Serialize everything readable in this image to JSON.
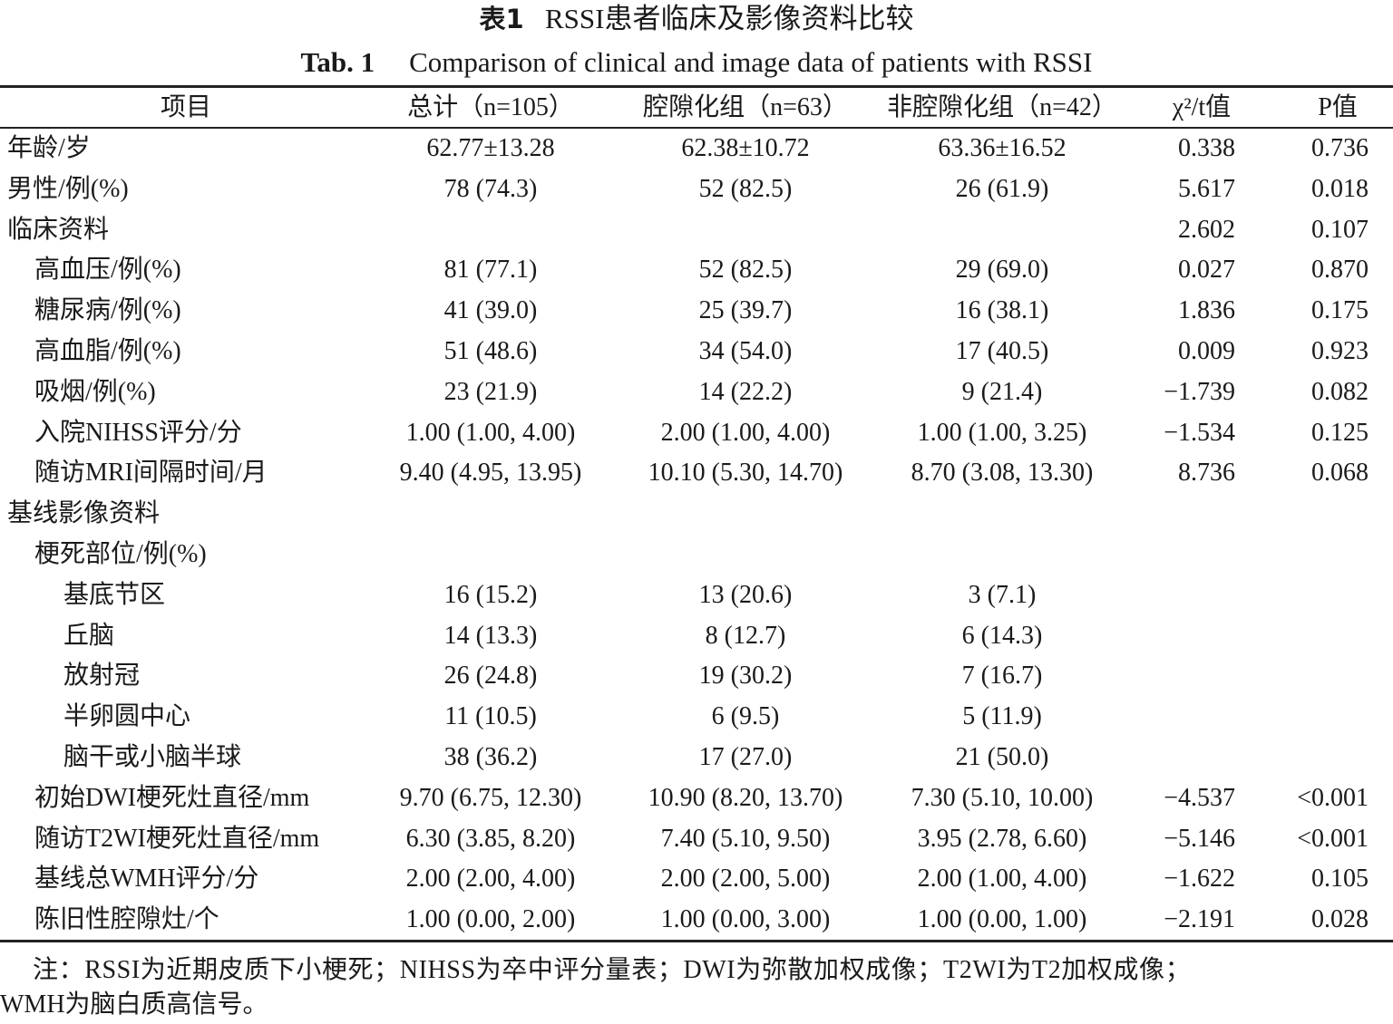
{
  "title": {
    "cn_label": "表1",
    "cn_text": "RSSI患者临床及影像资料比较",
    "en_label": "Tab. 1",
    "en_text": "Comparison of clinical and image data of patients with RSSI"
  },
  "headers": [
    "项目",
    "总计（n=105）",
    "腔隙化组（n=63）",
    "非腔隙化组（n=42）",
    "χ²/t值",
    "P值"
  ],
  "rows": [
    {
      "label": "年龄/岁",
      "indent": 0,
      "values": [
        "62.77±13.28",
        "62.38±10.72",
        "63.36±16.52",
        "0.338",
        "0.736"
      ]
    },
    {
      "label": "男性/例(%)",
      "indent": 0,
      "values": [
        "78 (74.3)",
        "52 (82.5)",
        "26 (61.9)",
        "5.617",
        "0.018"
      ]
    },
    {
      "label": "临床资料",
      "indent": 0,
      "values": [
        "",
        "",
        "",
        "2.602",
        "0.107"
      ]
    },
    {
      "label": "高血压/例(%)",
      "indent": 1,
      "values": [
        "81 (77.1)",
        "52 (82.5)",
        "29 (69.0)",
        "0.027",
        "0.870"
      ]
    },
    {
      "label": "糖尿病/例(%)",
      "indent": 1,
      "values": [
        "41 (39.0)",
        "25 (39.7)",
        "16 (38.1)",
        "1.836",
        "0.175"
      ]
    },
    {
      "label": "高血脂/例(%)",
      "indent": 1,
      "values": [
        "51 (48.6)",
        "34 (54.0)",
        "17 (40.5)",
        "0.009",
        "0.923"
      ]
    },
    {
      "label": "吸烟/例(%)",
      "indent": 1,
      "values": [
        "23 (21.9)",
        "14 (22.2)",
        "9 (21.4)",
        "−1.739",
        "0.082"
      ]
    },
    {
      "label": "入院NIHSS评分/分",
      "indent": 1,
      "values": [
        "1.00 (1.00, 4.00)",
        "2.00 (1.00, 4.00)",
        "1.00 (1.00, 3.25)",
        "−1.534",
        "0.125"
      ]
    },
    {
      "label": "随访MRI间隔时间/月",
      "indent": 1,
      "values": [
        "9.40 (4.95, 13.95)",
        "10.10 (5.30, 14.70)",
        "8.70 (3.08, 13.30)",
        "8.736",
        "0.068"
      ]
    },
    {
      "label": "基线影像资料",
      "indent": 0,
      "values": [
        "",
        "",
        "",
        "",
        ""
      ]
    },
    {
      "label": "梗死部位/例(%)",
      "indent": 1,
      "values": [
        "",
        "",
        "",
        "",
        ""
      ]
    },
    {
      "label": "基底节区",
      "indent": 2,
      "values": [
        "16 (15.2)",
        "13 (20.6)",
        "3 (7.1)",
        "",
        ""
      ]
    },
    {
      "label": "丘脑",
      "indent": 2,
      "values": [
        "14 (13.3)",
        "8 (12.7)",
        "6 (14.3)",
        "",
        ""
      ]
    },
    {
      "label": "放射冠",
      "indent": 2,
      "values": [
        "26 (24.8)",
        "19 (30.2)",
        "7 (16.7)",
        "",
        ""
      ]
    },
    {
      "label": "半卵圆中心",
      "indent": 2,
      "values": [
        "11 (10.5)",
        "6 (9.5)",
        "5 (11.9)",
        "",
        ""
      ]
    },
    {
      "label": "脑干或小脑半球",
      "indent": 2,
      "values": [
        "38 (36.2)",
        "17 (27.0)",
        "21 (50.0)",
        "",
        ""
      ]
    },
    {
      "label": "初始DWI梗死灶直径/mm",
      "indent": 1,
      "values": [
        "9.70 (6.75, 12.30)",
        "10.90 (8.20, 13.70)",
        "7.30 (5.10, 10.00)",
        "−4.537",
        "<0.001"
      ]
    },
    {
      "label": "随访T2WI梗死灶直径/mm",
      "indent": 1,
      "values": [
        "6.30 (3.85, 8.20)",
        "7.40 (5.10, 9.50)",
        "3.95 (2.78, 6.60)",
        "−5.146",
        "<0.001"
      ]
    },
    {
      "label": "基线总WMH评分/分",
      "indent": 1,
      "values": [
        "2.00 (2.00, 4.00)",
        "2.00 (2.00, 5.00)",
        "2.00 (1.00, 4.00)",
        "−1.622",
        "0.105"
      ]
    },
    {
      "label": "陈旧性腔隙灶/个",
      "indent": 1,
      "values": [
        "1.00 (0.00, 2.00)",
        "1.00 (0.00, 3.00)",
        "1.00 (0.00, 1.00)",
        "−2.191",
        "0.028"
      ]
    }
  ],
  "note": {
    "line1": "注：RSSI为近期皮质下小梗死；NIHSS为卒中评分量表；DWI为弥散加权成像；T2WI为T2加权成像；",
    "line2": "WMH为脑白质高信号。"
  }
}
